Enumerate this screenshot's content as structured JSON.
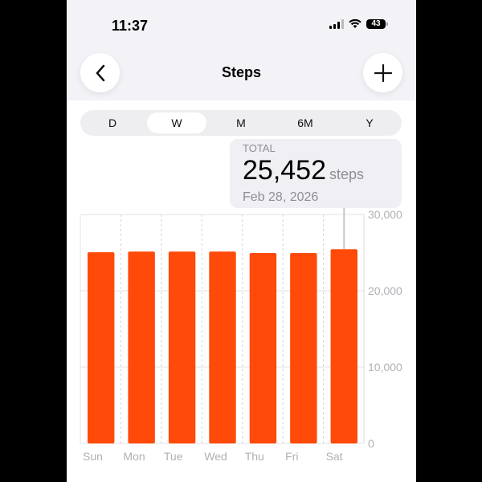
{
  "status_bar": {
    "time": "11:37",
    "battery": "43"
  },
  "nav": {
    "title": "Steps",
    "back_icon": "chevron-left-icon",
    "add_icon": "plus-icon"
  },
  "segments": [
    {
      "label": "D"
    },
    {
      "label": "W",
      "selected": true
    },
    {
      "label": "M"
    },
    {
      "label": "6M"
    },
    {
      "label": "Y"
    }
  ],
  "tooltip": {
    "label": "TOTAL",
    "value": "25,452",
    "unit": "steps",
    "date": "Feb 28, 2026"
  },
  "colors": {
    "bar": "#ff4a0a",
    "background": "#ffffff",
    "header": "#f2f2f7"
  },
  "chart_data": {
    "type": "bar",
    "categories": [
      "Sun",
      "Mon",
      "Tue",
      "Wed",
      "Thu",
      "Fri",
      "Sat"
    ],
    "values": [
      25050,
      25150,
      25150,
      25150,
      24950,
      24950,
      25452
    ],
    "ylim": [
      0,
      30000
    ],
    "yticks": [
      0,
      10000,
      20000,
      30000
    ],
    "ytick_labels": [
      "0",
      "10,000",
      "20,000",
      "30,000"
    ],
    "grid": true,
    "selected": "Sat"
  }
}
